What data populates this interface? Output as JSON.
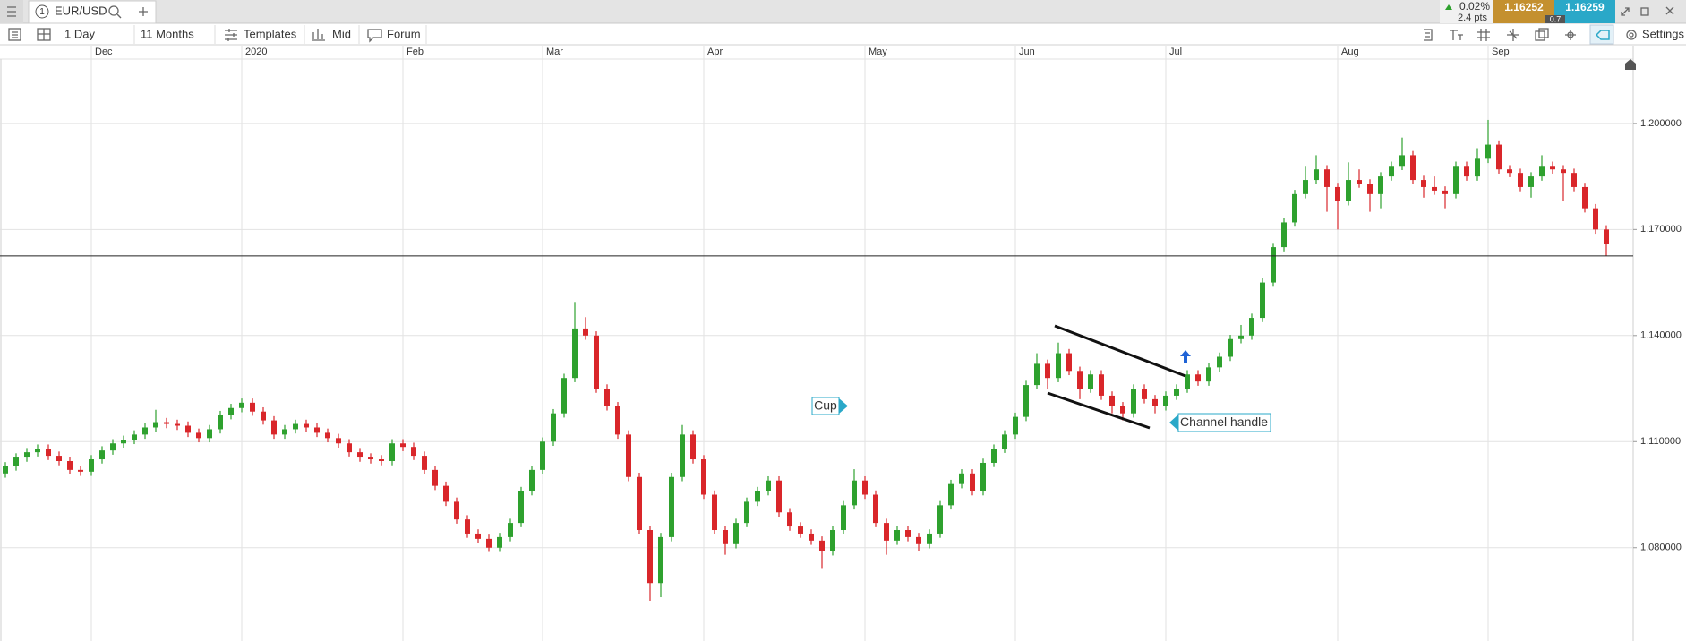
{
  "header": {
    "tab_number": "1",
    "instrument": "EUR/USD",
    "change": "0.02%",
    "points": "2.4 pts"
  },
  "quote": {
    "sell": 1.16252,
    "spread": 0.7,
    "buy": 1.16259
  },
  "toolbar": {
    "interval": "1 Day",
    "range": "11 Months",
    "templates": "Templates",
    "price_type": "Mid",
    "forum": "Forum",
    "settings": "Settings"
  },
  "annotations": {
    "cup": "Cup",
    "handle": "Channel handle"
  },
  "chart_data": {
    "type": "candlestick",
    "up_color": "#2ea12e",
    "down_color": "#d9262a",
    "grid": true,
    "ylim": [
      1.0536,
      1.2182
    ],
    "yticks": [
      {
        "value": 1.08,
        "label": "1.080000"
      },
      {
        "value": 1.11,
        "label": "1.110000"
      },
      {
        "value": 1.14,
        "label": "1.140000"
      },
      {
        "value": 1.17,
        "label": "1.170000"
      },
      {
        "value": 1.2,
        "label": "1.200000"
      }
    ],
    "xlim": [
      -0.5,
      151.5
    ],
    "xticks": [
      {
        "value": 8,
        "label": "Dec"
      },
      {
        "value": 22,
        "label": "2020"
      },
      {
        "value": 37,
        "label": "Feb"
      },
      {
        "value": 50,
        "label": "Mar"
      },
      {
        "value": 65,
        "label": "Apr"
      },
      {
        "value": 80,
        "label": "May"
      },
      {
        "value": 94,
        "label": "Jun"
      },
      {
        "value": 108,
        "label": "Jul"
      },
      {
        "value": 124,
        "label": "Aug"
      },
      {
        "value": 138,
        "label": "Sep"
      }
    ],
    "open": [
      1.101,
      1.103,
      1.1055,
      1.107,
      1.108,
      1.106,
      1.1045,
      1.102,
      1.1015,
      1.105,
      1.1075,
      1.1095,
      1.1105,
      1.112,
      1.114,
      1.1155,
      1.115,
      1.1145,
      1.1125,
      1.111,
      1.1135,
      1.1175,
      1.1195,
      1.121,
      1.1185,
      1.116,
      1.112,
      1.1135,
      1.115,
      1.114,
      1.1125,
      1.111,
      1.1095,
      1.107,
      1.1055,
      1.105,
      1.1045,
      1.1095,
      1.1085,
      1.106,
      1.102,
      1.0975,
      1.093,
      1.088,
      1.084,
      1.0825,
      1.08,
      1.083,
      1.087,
      1.096,
      1.102,
      1.11,
      1.118,
      1.128,
      1.142,
      1.14,
      1.125,
      1.12,
      1.112,
      1.1,
      1.085,
      1.07,
      1.083,
      1.1,
      1.112,
      1.105,
      1.095,
      1.085,
      1.081,
      1.087,
      1.093,
      1.096,
      1.099,
      1.09,
      1.086,
      1.084,
      1.082,
      1.079,
      1.085,
      1.092,
      1.099,
      1.095,
      1.087,
      1.082,
      1.085,
      1.083,
      1.081,
      1.084,
      1.092,
      1.098,
      1.101,
      1.096,
      1.104,
      1.108,
      1.112,
      1.117,
      1.126,
      1.132,
      1.128,
      1.135,
      1.13,
      1.125,
      1.129,
      1.123,
      1.12,
      1.118,
      1.125,
      1.122,
      1.12,
      1.123,
      1.125,
      1.129,
      1.127,
      1.131,
      1.134,
      1.139,
      1.14,
      1.145,
      1.155,
      1.165,
      1.172,
      1.18,
      1.184,
      1.187,
      1.182,
      1.178,
      1.184,
      1.183,
      1.18,
      1.185,
      1.188,
      1.191,
      1.184,
      1.182,
      1.181,
      1.18,
      1.188,
      1.185,
      1.19,
      1.194,
      1.187,
      1.186,
      1.182,
      1.185,
      1.188,
      1.187,
      1.186,
      1.182,
      1.176,
      1.17
    ],
    "high": [
      1.1042,
      1.1067,
      1.1082,
      1.1092,
      1.1092,
      1.1072,
      1.1057,
      1.1032,
      1.1062,
      1.1087,
      1.1107,
      1.1117,
      1.1132,
      1.1152,
      1.119,
      1.1167,
      1.1162,
      1.1157,
      1.1137,
      1.1147,
      1.1187,
      1.1207,
      1.1222,
      1.1222,
      1.1197,
      1.1172,
      1.1147,
      1.1162,
      1.1162,
      1.1152,
      1.1137,
      1.1122,
      1.1107,
      1.1082,
      1.1067,
      1.1062,
      1.1107,
      1.1107,
      1.1097,
      1.1072,
      1.1032,
      1.0987,
      1.0942,
      1.0892,
      1.0852,
      1.0837,
      1.0842,
      1.0882,
      1.0972,
      1.1032,
      1.1112,
      1.1192,
      1.1292,
      1.1495,
      1.1452,
      1.1412,
      1.1262,
      1.1212,
      1.1132,
      1.1012,
      1.0862,
      1.0842,
      1.1012,
      1.1147,
      1.1132,
      1.1062,
      1.0962,
      1.0862,
      1.0882,
      1.0942,
      1.0972,
      1.1002,
      1.1002,
      1.0912,
      1.0872,
      1.0852,
      1.0832,
      1.0862,
      1.0932,
      1.1022,
      1.1002,
      1.0962,
      1.0882,
      1.0862,
      1.0862,
      1.0842,
      1.0852,
      1.0932,
      1.0992,
      1.1022,
      1.1022,
      1.1052,
      1.1092,
      1.1132,
      1.1182,
      1.1272,
      1.135,
      1.1332,
      1.138,
      1.1362,
      1.1312,
      1.1302,
      1.1302,
      1.1242,
      1.1212,
      1.1262,
      1.1262,
      1.1232,
      1.1242,
      1.1262,
      1.1302,
      1.1302,
      1.1322,
      1.1352,
      1.1402,
      1.143,
      1.1462,
      1.1562,
      1.1662,
      1.1732,
      1.1812,
      1.188,
      1.191,
      1.1882,
      1.1832,
      1.189,
      1.187,
      1.1842,
      1.1862,
      1.1892,
      1.196,
      1.1922,
      1.1852,
      1.185,
      1.1822,
      1.1892,
      1.1892,
      1.193,
      1.201,
      1.1952,
      1.1882,
      1.1872,
      1.1862,
      1.191,
      1.1892,
      1.1882,
      1.1872,
      1.1832,
      1.1772,
      1.1712
    ],
    "low": [
      1.0998,
      1.1018,
      1.1043,
      1.1058,
      1.1048,
      1.1033,
      1.1008,
      1.1003,
      1.1003,
      1.1038,
      1.1063,
      1.1083,
      1.1093,
      1.1108,
      1.1128,
      1.1138,
      1.1133,
      1.1113,
      1.1098,
      1.1098,
      1.1123,
      1.1163,
      1.1183,
      1.1173,
      1.1148,
      1.1108,
      1.1108,
      1.1123,
      1.1128,
      1.1113,
      1.1098,
      1.1083,
      1.1058,
      1.1043,
      1.1038,
      1.1033,
      1.1033,
      1.1073,
      1.1048,
      1.1008,
      1.0963,
      1.0918,
      1.0868,
      1.0828,
      1.0813,
      1.0788,
      1.0788,
      1.0818,
      1.0858,
      1.0948,
      1.1008,
      1.1088,
      1.1168,
      1.1268,
      1.1388,
      1.1238,
      1.1188,
      1.1108,
      1.0988,
      1.0838,
      1.065,
      1.066,
      1.0818,
      1.0988,
      1.1038,
      1.0938,
      1.0838,
      1.078,
      1.0798,
      1.0858,
      1.0918,
      1.0948,
      1.0888,
      1.0848,
      1.0828,
      1.0808,
      1.074,
      1.0778,
      1.0838,
      1.0908,
      1.0938,
      1.0858,
      1.078,
      1.0808,
      1.0818,
      1.079,
      1.0798,
      1.0828,
      1.0908,
      1.0968,
      1.0948,
      1.0948,
      1.1028,
      1.1068,
      1.1108,
      1.1158,
      1.1248,
      1.125,
      1.1268,
      1.1288,
      1.122,
      1.1238,
      1.1218,
      1.118,
      1.116,
      1.1168,
      1.1208,
      1.118,
      1.1188,
      1.1218,
      1.1238,
      1.1258,
      1.1258,
      1.1298,
      1.1328,
      1.1378,
      1.1388,
      1.1438,
      1.1538,
      1.1638,
      1.1708,
      1.1788,
      1.1828,
      1.175,
      1.17,
      1.1768,
      1.1818,
      1.175,
      1.176,
      1.1838,
      1.1868,
      1.1828,
      1.179,
      1.1798,
      1.176,
      1.1788,
      1.1838,
      1.1838,
      1.1888,
      1.1858,
      1.1848,
      1.1808,
      1.179,
      1.1838,
      1.1858,
      1.178,
      1.1808,
      1.1748,
      1.1688,
      1.1625
    ],
    "close": [
      1.103,
      1.1055,
      1.107,
      1.108,
      1.106,
      1.1045,
      1.102,
      1.1015,
      1.105,
      1.1075,
      1.1095,
      1.1105,
      1.112,
      1.114,
      1.1155,
      1.115,
      1.1145,
      1.1125,
      1.111,
      1.1135,
      1.1175,
      1.1195,
      1.121,
      1.1185,
      1.116,
      1.112,
      1.1135,
      1.115,
      1.114,
      1.1125,
      1.111,
      1.1095,
      1.107,
      1.1055,
      1.105,
      1.1045,
      1.1095,
      1.1085,
      1.106,
      1.102,
      1.0975,
      1.093,
      1.088,
      1.084,
      1.0825,
      1.08,
      1.083,
      1.087,
      1.096,
      1.102,
      1.11,
      1.118,
      1.128,
      1.142,
      1.14,
      1.125,
      1.12,
      1.112,
      1.1,
      1.085,
      1.07,
      1.083,
      1.1,
      1.112,
      1.105,
      1.095,
      1.085,
      1.081,
      1.087,
      1.093,
      1.096,
      1.099,
      1.09,
      1.086,
      1.084,
      1.082,
      1.079,
      1.085,
      1.092,
      1.099,
      1.095,
      1.087,
      1.082,
      1.085,
      1.083,
      1.081,
      1.084,
      1.092,
      1.098,
      1.101,
      1.096,
      1.104,
      1.108,
      1.112,
      1.117,
      1.126,
      1.132,
      1.128,
      1.135,
      1.13,
      1.125,
      1.129,
      1.123,
      1.12,
      1.118,
      1.125,
      1.122,
      1.12,
      1.123,
      1.125,
      1.129,
      1.127,
      1.131,
      1.134,
      1.139,
      1.14,
      1.145,
      1.155,
      1.165,
      1.172,
      1.18,
      1.184,
      1.187,
      1.182,
      1.178,
      1.184,
      1.183,
      1.18,
      1.185,
      1.188,
      1.191,
      1.184,
      1.182,
      1.181,
      1.18,
      1.188,
      1.185,
      1.19,
      1.194,
      1.187,
      1.186,
      1.182,
      1.185,
      1.188,
      1.187,
      1.186,
      1.182,
      1.176,
      1.17,
      1.166
    ]
  }
}
